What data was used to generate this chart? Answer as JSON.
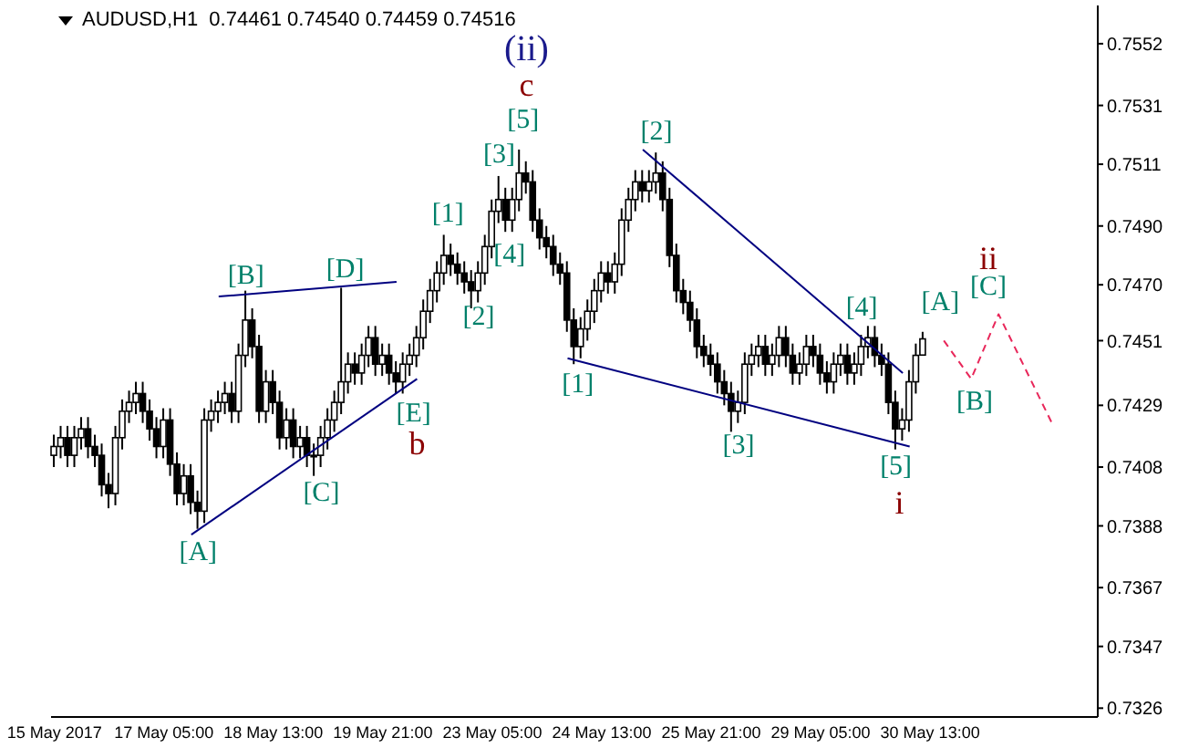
{
  "chart_data": {
    "type": "candlestick",
    "title": "AUDUSD,H1  0.74461 0.74540 0.74459 0.74516",
    "categories": [
      "15 May 2017",
      null,
      null,
      null,
      null,
      null,
      null,
      null,
      null,
      null,
      null,
      null,
      null,
      null,
      null,
      null,
      "17 May 05:00",
      null,
      null,
      null,
      null,
      null,
      null,
      null,
      null,
      null,
      null,
      null,
      null,
      null,
      null,
      null,
      "18 May 13:00",
      null,
      null,
      null,
      null,
      null,
      null,
      null,
      null,
      null,
      null,
      null,
      null,
      null,
      null,
      null,
      "19 May 21:00",
      null,
      null,
      null,
      null,
      null,
      null,
      null,
      null,
      null,
      null,
      null,
      null,
      null,
      null,
      null,
      "23 May 05:00",
      null,
      null,
      null,
      null,
      null,
      null,
      null,
      null,
      null,
      null,
      null,
      null,
      null,
      null,
      null,
      "24 May 13:00",
      null,
      null,
      null,
      null,
      null,
      null,
      null,
      null,
      null,
      null,
      null,
      null,
      null,
      null,
      null,
      "25 May 21:00",
      null,
      null,
      null,
      null,
      null,
      null,
      null,
      null,
      null,
      null,
      null,
      null,
      null,
      null,
      null,
      "29 May 05:00",
      null,
      null,
      null,
      null,
      null,
      null,
      null,
      null,
      null,
      null,
      null,
      null,
      null,
      null,
      null,
      "30 May 13:00",
      null,
      null,
      null,
      null,
      null,
      null,
      null,
      null,
      null,
      null,
      null,
      null,
      null,
      null,
      null,
      null,
      null,
      null,
      null,
      null,
      null,
      null,
      null,
      null
    ],
    "ohlc": [
      [
        0.7412,
        0.7419,
        0.7408,
        0.7415
      ],
      [
        0.7415,
        0.7422,
        0.7411,
        0.7418
      ],
      [
        0.7418,
        0.7422,
        0.7408,
        0.7412
      ],
      [
        0.7412,
        0.7422,
        0.7408,
        0.7418
      ],
      [
        0.7418,
        0.7425,
        0.7414,
        0.7421
      ],
      [
        0.7421,
        0.7425,
        0.7411,
        0.7415
      ],
      [
        0.7415,
        0.7419,
        0.7408,
        0.7412
      ],
      [
        0.7412,
        0.7416,
        0.7398,
        0.7402
      ],
      [
        0.7402,
        0.7406,
        0.7394,
        0.7399
      ],
      [
        0.7399,
        0.7422,
        0.7395,
        0.7418
      ],
      [
        0.7418,
        0.7431,
        0.7414,
        0.7427
      ],
      [
        0.7427,
        0.7434,
        0.7423,
        0.743
      ],
      [
        0.743,
        0.7437,
        0.7426,
        0.7433
      ],
      [
        0.7433,
        0.7437,
        0.7423,
        0.7427
      ],
      [
        0.7427,
        0.7431,
        0.7417,
        0.7421
      ],
      [
        0.7421,
        0.7425,
        0.7411,
        0.7415
      ],
      [
        0.7415,
        0.7428,
        0.7411,
        0.7424
      ],
      [
        0.7424,
        0.7428,
        0.7405,
        0.7409
      ],
      [
        0.7409,
        0.7413,
        0.7395,
        0.7399
      ],
      [
        0.7399,
        0.7409,
        0.7395,
        0.7405
      ],
      [
        0.7405,
        0.7409,
        0.7392,
        0.7396
      ],
      [
        0.7396,
        0.74,
        0.7387,
        0.7393
      ],
      [
        0.7393,
        0.7428,
        0.7389,
        0.7424
      ],
      [
        0.7424,
        0.7431,
        0.742,
        0.7427
      ],
      [
        0.7427,
        0.7434,
        0.7423,
        0.743
      ],
      [
        0.743,
        0.7437,
        0.7426,
        0.7433
      ],
      [
        0.7433,
        0.7437,
        0.7423,
        0.7427
      ],
      [
        0.7427,
        0.745,
        0.7423,
        0.7446
      ],
      [
        0.7446,
        0.7468,
        0.7442,
        0.7458
      ],
      [
        0.7458,
        0.7462,
        0.7445,
        0.7449
      ],
      [
        0.7449,
        0.7453,
        0.7423,
        0.7427
      ],
      [
        0.7427,
        0.7441,
        0.7423,
        0.7437
      ],
      [
        0.7437,
        0.7441,
        0.7426,
        0.743
      ],
      [
        0.743,
        0.7434,
        0.7414,
        0.7418
      ],
      [
        0.7418,
        0.7428,
        0.7414,
        0.7424
      ],
      [
        0.7424,
        0.7428,
        0.7411,
        0.7415
      ],
      [
        0.7415,
        0.7422,
        0.7411,
        0.7418
      ],
      [
        0.7418,
        0.7422,
        0.7408,
        0.7412
      ],
      [
        0.7412,
        0.7416,
        0.7405,
        0.7412
      ],
      [
        0.7412,
        0.7422,
        0.7408,
        0.7418
      ],
      [
        0.7418,
        0.7428,
        0.7414,
        0.7424
      ],
      [
        0.7424,
        0.7434,
        0.742,
        0.743
      ],
      [
        0.743,
        0.7469,
        0.7426,
        0.7437
      ],
      [
        0.7437,
        0.7447,
        0.7433,
        0.7443
      ],
      [
        0.7443,
        0.7447,
        0.7436,
        0.744
      ],
      [
        0.744,
        0.745,
        0.7436,
        0.7446
      ],
      [
        0.7446,
        0.7456,
        0.7442,
        0.7452
      ],
      [
        0.7452,
        0.7456,
        0.7439,
        0.7443
      ],
      [
        0.7443,
        0.745,
        0.7439,
        0.7446
      ],
      [
        0.7446,
        0.745,
        0.7436,
        0.744
      ],
      [
        0.744,
        0.7444,
        0.7433,
        0.7437
      ],
      [
        0.7437,
        0.7447,
        0.7433,
        0.7443
      ],
      [
        0.7443,
        0.745,
        0.7439,
        0.7446
      ],
      [
        0.7446,
        0.7456,
        0.7442,
        0.7452
      ],
      [
        0.7452,
        0.7465,
        0.7448,
        0.7461
      ],
      [
        0.7461,
        0.7472,
        0.7457,
        0.7468
      ],
      [
        0.7468,
        0.7478,
        0.7464,
        0.7474
      ],
      [
        0.7474,
        0.7487,
        0.747,
        0.748
      ],
      [
        0.748,
        0.7484,
        0.7473,
        0.7477
      ],
      [
        0.7477,
        0.7481,
        0.747,
        0.7474
      ],
      [
        0.7474,
        0.7478,
        0.7467,
        0.7471
      ],
      [
        0.7471,
        0.7475,
        0.7462,
        0.7468
      ],
      [
        0.7468,
        0.7478,
        0.7464,
        0.7474
      ],
      [
        0.7474,
        0.7487,
        0.747,
        0.7483
      ],
      [
        0.7483,
        0.7499,
        0.7479,
        0.7495
      ],
      [
        0.7495,
        0.7507,
        0.7491,
        0.7499
      ],
      [
        0.7499,
        0.7503,
        0.7488,
        0.7492
      ],
      [
        0.7492,
        0.7503,
        0.7488,
        0.7499
      ],
      [
        0.7499,
        0.7516,
        0.7495,
        0.7508
      ],
      [
        0.7508,
        0.7512,
        0.7501,
        0.7505
      ],
      [
        0.7505,
        0.7509,
        0.7488,
        0.7492
      ],
      [
        0.7492,
        0.7496,
        0.7482,
        0.7486
      ],
      [
        0.7486,
        0.749,
        0.7479,
        0.7483
      ],
      [
        0.7483,
        0.7487,
        0.7473,
        0.7477
      ],
      [
        0.7477,
        0.7481,
        0.747,
        0.7474
      ],
      [
        0.7474,
        0.7478,
        0.7454,
        0.7458
      ],
      [
        0.7458,
        0.7462,
        0.7443,
        0.7449
      ],
      [
        0.7449,
        0.7459,
        0.7445,
        0.7455
      ],
      [
        0.7455,
        0.7465,
        0.7451,
        0.7461
      ],
      [
        0.7461,
        0.7472,
        0.7457,
        0.7468
      ],
      [
        0.7468,
        0.7478,
        0.7464,
        0.7474
      ],
      [
        0.7474,
        0.7478,
        0.7467,
        0.7471
      ],
      [
        0.7471,
        0.7481,
        0.7467,
        0.7477
      ],
      [
        0.7477,
        0.7496,
        0.7473,
        0.7492
      ],
      [
        0.7492,
        0.7503,
        0.7488,
        0.7499
      ],
      [
        0.7499,
        0.7509,
        0.7495,
        0.7505
      ],
      [
        0.7505,
        0.7509,
        0.7498,
        0.7502
      ],
      [
        0.7502,
        0.7509,
        0.7498,
        0.7505
      ],
      [
        0.7505,
        0.7515,
        0.7501,
        0.7508
      ],
      [
        0.7508,
        0.7512,
        0.7495,
        0.7499
      ],
      [
        0.7499,
        0.7503,
        0.7476,
        0.748
      ],
      [
        0.748,
        0.7484,
        0.7464,
        0.7468
      ],
      [
        0.7468,
        0.7472,
        0.746,
        0.7464
      ],
      [
        0.7464,
        0.7468,
        0.7454,
        0.7458
      ],
      [
        0.7458,
        0.7462,
        0.7445,
        0.7449
      ],
      [
        0.7449,
        0.7453,
        0.7442,
        0.7446
      ],
      [
        0.7446,
        0.745,
        0.7439,
        0.7443
      ],
      [
        0.7443,
        0.7447,
        0.7433,
        0.7437
      ],
      [
        0.7437,
        0.7441,
        0.7429,
        0.7433
      ],
      [
        0.7433,
        0.7437,
        0.742,
        0.7427
      ],
      [
        0.7427,
        0.7434,
        0.7423,
        0.743
      ],
      [
        0.743,
        0.7447,
        0.7426,
        0.7443
      ],
      [
        0.7443,
        0.745,
        0.7439,
        0.7446
      ],
      [
        0.7446,
        0.7453,
        0.7442,
        0.7449
      ],
      [
        0.7449,
        0.7453,
        0.7439,
        0.7443
      ],
      [
        0.7443,
        0.745,
        0.7439,
        0.7446
      ],
      [
        0.7446,
        0.7456,
        0.7442,
        0.7452
      ],
      [
        0.7452,
        0.7456,
        0.7442,
        0.7446
      ],
      [
        0.7446,
        0.745,
        0.7436,
        0.744
      ],
      [
        0.744,
        0.7447,
        0.7436,
        0.7443
      ],
      [
        0.7443,
        0.7453,
        0.7439,
        0.7449
      ],
      [
        0.7449,
        0.7453,
        0.7442,
        0.7446
      ],
      [
        0.7446,
        0.745,
        0.7436,
        0.744
      ],
      [
        0.744,
        0.7444,
        0.7433,
        0.7437
      ],
      [
        0.7437,
        0.7447,
        0.7433,
        0.7443
      ],
      [
        0.7443,
        0.745,
        0.7439,
        0.7446
      ],
      [
        0.7446,
        0.745,
        0.7436,
        0.744
      ],
      [
        0.744,
        0.7447,
        0.7436,
        0.7443
      ],
      [
        0.7443,
        0.7453,
        0.7439,
        0.7449
      ],
      [
        0.7449,
        0.7456,
        0.7445,
        0.7452
      ],
      [
        0.7452,
        0.7456,
        0.7442,
        0.7446
      ],
      [
        0.7446,
        0.745,
        0.7439,
        0.7443
      ],
      [
        0.7443,
        0.7447,
        0.7426,
        0.743
      ],
      [
        0.743,
        0.7434,
        0.7414,
        0.7421
      ],
      [
        0.7421,
        0.7428,
        0.7417,
        0.7424
      ],
      [
        0.7424,
        0.7441,
        0.742,
        0.7437
      ],
      [
        0.7437,
        0.745,
        0.7433,
        0.7446
      ],
      [
        0.74461,
        0.7454,
        0.74459,
        0.74516
      ],
      null,
      null,
      null,
      null,
      null,
      null,
      null,
      null,
      null,
      null,
      null,
      null,
      null,
      null,
      null,
      null,
      null,
      null,
      null,
      null,
      null,
      null,
      null,
      null,
      null
    ],
    "color": "#000000",
    "series": [
      {
        "type": "line",
        "color": "#000080",
        "values": [
          null,
          null,
          null,
          null,
          null,
          null,
          null,
          null,
          null,
          null,
          null,
          null,
          null,
          null,
          null,
          null,
          null,
          null,
          null,
          null,
          null,
          null,
          null,
          null,
          0.7466,
          null,
          null,
          null,
          null,
          null,
          null,
          null,
          null,
          null,
          null,
          null,
          null,
          null,
          null,
          null,
          null,
          null,
          null,
          null,
          null,
          null,
          null,
          null,
          null,
          null,
          0.7471,
          null,
          null,
          null,
          null,
          null,
          null,
          null,
          null,
          null,
          null,
          null,
          null,
          null,
          null,
          null,
          null,
          null,
          null,
          null,
          null,
          null,
          null,
          null,
          null,
          null,
          null,
          null,
          null,
          null,
          null,
          null,
          null,
          null,
          null,
          null,
          null,
          null,
          null,
          null,
          null,
          null,
          null,
          null,
          null,
          null,
          null,
          null,
          null,
          null,
          null,
          null,
          null,
          null,
          null,
          null,
          null,
          null,
          null,
          null,
          null,
          null,
          null,
          null,
          null,
          null,
          null,
          null,
          null,
          null,
          null,
          null,
          null,
          null,
          null,
          null,
          null,
          null,
          null,
          null,
          null,
          null,
          null,
          null,
          null,
          null,
          null,
          null,
          null,
          null,
          null,
          null,
          null,
          null,
          null,
          null,
          null,
          null,
          null,
          null,
          null,
          null,
          null
        ]
      },
      {
        "type": "line",
        "color": "#000080",
        "values": [
          null,
          null,
          null,
          null,
          null,
          null,
          null,
          null,
          null,
          null,
          null,
          null,
          null,
          null,
          null,
          null,
          null,
          null,
          null,
          null,
          0.7385,
          null,
          null,
          null,
          null,
          null,
          null,
          null,
          null,
          null,
          null,
          null,
          null,
          null,
          null,
          null,
          null,
          null,
          null,
          null,
          null,
          null,
          null,
          null,
          null,
          null,
          null,
          null,
          null,
          null,
          null,
          null,
          null,
          0.7438,
          null,
          null,
          null,
          null,
          null,
          null,
          null,
          null,
          null,
          null,
          null,
          null,
          null,
          null,
          null,
          null,
          null,
          null,
          null,
          null,
          null,
          null,
          null,
          null,
          null,
          null,
          null,
          null,
          null,
          null,
          null,
          null,
          null,
          null,
          null,
          null,
          null,
          null,
          null,
          null,
          null,
          null,
          null,
          null,
          null,
          null,
          null,
          null,
          null,
          null,
          null,
          null,
          null,
          null,
          null,
          null,
          null,
          null,
          null,
          null,
          null,
          null,
          null,
          null,
          null,
          null,
          null,
          null,
          null,
          null,
          null,
          null,
          null,
          null,
          null,
          null,
          null,
          null,
          null,
          null,
          null,
          null,
          null,
          null,
          null,
          null,
          null,
          null,
          null,
          null,
          null,
          null,
          null,
          null,
          null,
          null,
          null,
          null,
          null
        ]
      },
      {
        "type": "line",
        "color": "#000080",
        "values": [
          null,
          null,
          null,
          null,
          null,
          null,
          null,
          null,
          null,
          null,
          null,
          null,
          null,
          null,
          null,
          null,
          null,
          null,
          null,
          null,
          null,
          null,
          null,
          null,
          null,
          null,
          null,
          null,
          null,
          null,
          null,
          null,
          null,
          null,
          null,
          null,
          null,
          null,
          null,
          null,
          null,
          null,
          null,
          null,
          null,
          null,
          null,
          null,
          null,
          null,
          null,
          null,
          null,
          null,
          null,
          null,
          null,
          null,
          null,
          null,
          null,
          null,
          null,
          null,
          null,
          null,
          null,
          null,
          null,
          null,
          null,
          null,
          null,
          null,
          null,
          null,
          null,
          null,
          null,
          null,
          null,
          null,
          null,
          null,
          null,
          null,
          0.7516,
          null,
          null,
          null,
          null,
          null,
          null,
          null,
          null,
          null,
          null,
          null,
          null,
          null,
          null,
          null,
          null,
          null,
          null,
          null,
          null,
          null,
          null,
          null,
          null,
          null,
          null,
          null,
          null,
          null,
          null,
          null,
          null,
          null,
          null,
          null,
          null,
          null,
          0.744,
          null,
          null,
          null,
          null,
          null,
          null,
          null,
          null,
          null,
          null,
          null,
          null,
          null,
          null,
          null,
          null,
          null,
          null,
          null,
          null,
          null,
          null,
          null,
          null,
          null,
          null,
          null,
          null
        ]
      },
      {
        "type": "line",
        "color": "#000080",
        "values": [
          null,
          null,
          null,
          null,
          null,
          null,
          null,
          null,
          null,
          null,
          null,
          null,
          null,
          null,
          null,
          null,
          null,
          null,
          null,
          null,
          null,
          null,
          null,
          null,
          null,
          null,
          null,
          null,
          null,
          null,
          null,
          null,
          null,
          null,
          null,
          null,
          null,
          null,
          null,
          null,
          null,
          null,
          null,
          null,
          null,
          null,
          null,
          null,
          null,
          null,
          null,
          null,
          null,
          null,
          null,
          null,
          null,
          null,
          null,
          null,
          null,
          null,
          null,
          null,
          null,
          null,
          null,
          null,
          null,
          null,
          null,
          null,
          null,
          null,
          null,
          0.7445,
          null,
          null,
          null,
          null,
          null,
          null,
          null,
          null,
          null,
          null,
          null,
          null,
          null,
          null,
          null,
          null,
          null,
          null,
          null,
          null,
          null,
          null,
          null,
          null,
          null,
          null,
          null,
          null,
          null,
          null,
          null,
          null,
          null,
          null,
          null,
          null,
          null,
          null,
          null,
          null,
          null,
          null,
          null,
          null,
          null,
          null,
          null,
          null,
          null,
          0.7415,
          null,
          null,
          null,
          null,
          null,
          null,
          null,
          null,
          null,
          null,
          null,
          null,
          null,
          null,
          null,
          null,
          null,
          null,
          null,
          null,
          null,
          null,
          null,
          null,
          null,
          null,
          null
        ]
      },
      {
        "type": "line",
        "color": "#e8275a",
        "line_style": "dashed",
        "values": [
          null,
          null,
          null,
          null,
          null,
          null,
          null,
          null,
          null,
          null,
          null,
          null,
          null,
          null,
          null,
          null,
          null,
          null,
          null,
          null,
          null,
          null,
          null,
          null,
          null,
          null,
          null,
          null,
          null,
          null,
          null,
          null,
          null,
          null,
          null,
          null,
          null,
          null,
          null,
          null,
          null,
          null,
          null,
          null,
          null,
          null,
          null,
          null,
          null,
          null,
          null,
          null,
          null,
          null,
          null,
          null,
          null,
          null,
          null,
          null,
          null,
          null,
          null,
          null,
          null,
          null,
          null,
          null,
          null,
          null,
          null,
          null,
          null,
          null,
          null,
          null,
          null,
          null,
          null,
          null,
          null,
          null,
          null,
          null,
          null,
          null,
          null,
          null,
          null,
          null,
          null,
          null,
          null,
          null,
          null,
          null,
          null,
          null,
          null,
          null,
          null,
          null,
          null,
          null,
          null,
          null,
          null,
          null,
          null,
          null,
          null,
          null,
          null,
          null,
          null,
          null,
          null,
          null,
          null,
          null,
          null,
          null,
          null,
          null,
          null,
          null,
          null,
          null,
          null,
          null,
          0.7451,
          null,
          null,
          null,
          0.7438,
          null,
          null,
          null,
          0.746,
          null,
          null,
          null,
          null,
          null,
          null,
          null,
          0.7422,
          null,
          null,
          null,
          null,
          null,
          null
        ]
      }
    ],
    "ylim": [
      0.7323,
      0.7565
    ],
    "yticks": [
      {
        "value": 0.7326,
        "label": "0.7326"
      },
      {
        "value": 0.7347,
        "label": "0.7347"
      },
      {
        "value": 0.7367,
        "label": "0.7367"
      },
      {
        "value": 0.7388,
        "label": "0.7388"
      },
      {
        "value": 0.7408,
        "label": "0.7408"
      },
      {
        "value": 0.7429,
        "label": "0.7429"
      },
      {
        "value": 0.7451,
        "label": "0.7451"
      },
      {
        "value": 0.747,
        "label": "0.7470"
      },
      {
        "value": 0.749,
        "label": "0.7490"
      },
      {
        "value": 0.7511,
        "label": "0.7511"
      },
      {
        "value": 0.7531,
        "label": "0.7531"
      },
      {
        "value": 0.7552,
        "label": "0.7552"
      }
    ],
    "annotations": [
      "(ii)",
      "c",
      "[5]",
      "[3]",
      "[1]",
      "[4]",
      "[2]",
      "[B]",
      "[D]",
      "[A]",
      "[C]",
      "[E]",
      "b",
      "[1]",
      "[2]",
      "[3]",
      "[4]",
      "[5]",
      "i",
      "[A]",
      "ii",
      "[C]",
      "[B]"
    ]
  }
}
